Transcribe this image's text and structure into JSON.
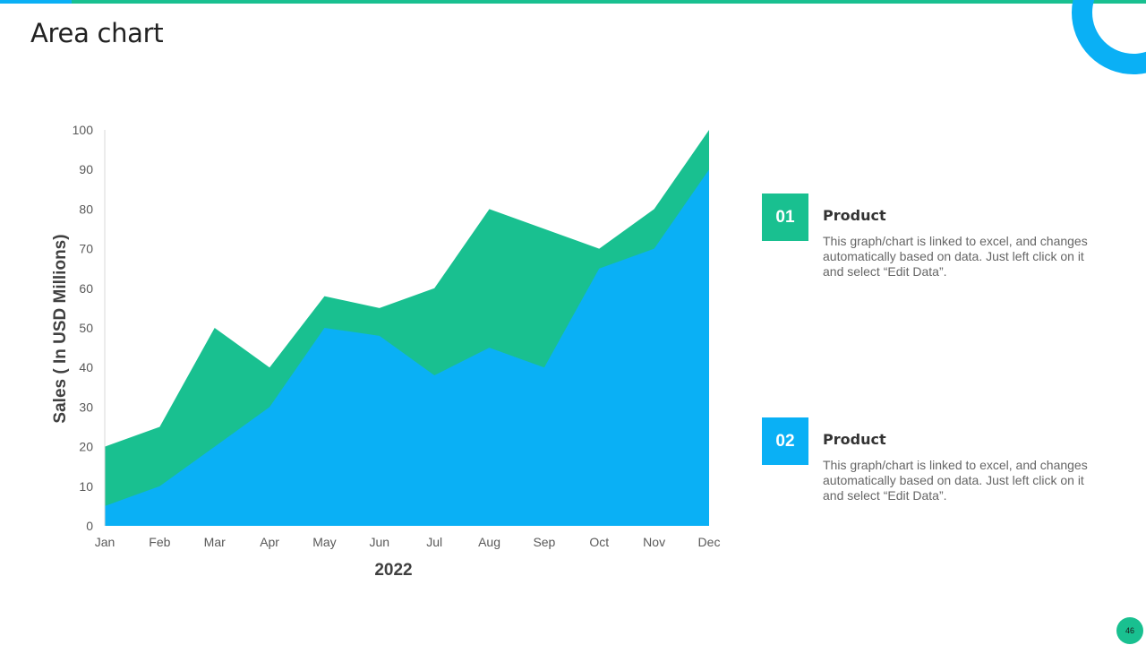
{
  "slide": {
    "title": "Area chart",
    "page_number": "46"
  },
  "colors": {
    "accent_green": "#19c090",
    "accent_blue": "#0ab0f5"
  },
  "legend": [
    {
      "badge": "01",
      "title": "Product",
      "description": "This graph/chart is linked to excel, and changes automatically based on data. Just left click on it and select “Edit Data”.",
      "color": "#19c090"
    },
    {
      "badge": "02",
      "title": "Product",
      "description": "This graph/chart is linked to excel, and changes automatically based on data. Just left click on it and select “Edit Data”.",
      "color": "#0ab0f5"
    }
  ],
  "chart_data": {
    "type": "area",
    "categories": [
      "Jan",
      "Feb",
      "Mar",
      "Apr",
      "May",
      "Jun",
      "Jul",
      "Aug",
      "Sep",
      "Oct",
      "Nov",
      "Dec"
    ],
    "series": [
      {
        "values": [
          20,
          25,
          50,
          40,
          58,
          55,
          60,
          80,
          75,
          70,
          80,
          100
        ],
        "color": "#19c090"
      },
      {
        "values": [
          5,
          10,
          20,
          30,
          50,
          48,
          38,
          45,
          40,
          65,
          70,
          90
        ],
        "color": "#0ab0f5"
      }
    ],
    "xlabel": "2022",
    "ylabel": "Sales ( In USD Millions)",
    "ylim": [
      0,
      100
    ],
    "yticks": [
      0,
      10,
      20,
      30,
      40,
      50,
      60,
      70,
      80,
      90,
      100
    ],
    "grid": false,
    "legend": "none"
  }
}
